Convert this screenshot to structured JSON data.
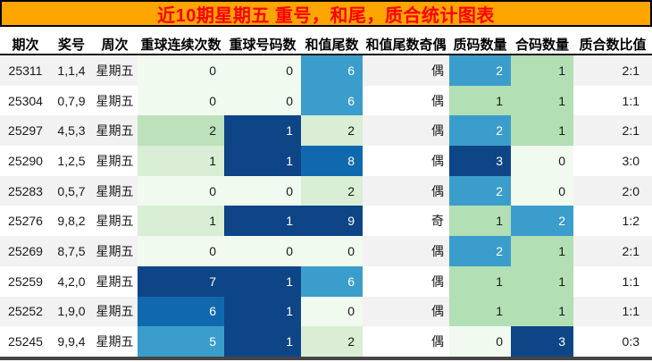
{
  "banner": {
    "title": "近10期星期五 重号，和尾，质合统计图表",
    "bg_color": "#FFA500",
    "text_color": "#FF0000"
  },
  "table": {
    "columns": [
      {
        "key": "period",
        "label": "期次"
      },
      {
        "key": "win-numbers",
        "label": "奖号"
      },
      {
        "key": "weekday",
        "label": "周次"
      },
      {
        "key": "repeat-streak",
        "label": "重球连续次数"
      },
      {
        "key": "repeat-number-count",
        "label": "重球号码数"
      },
      {
        "key": "sum-tail",
        "label": "和值尾数"
      },
      {
        "key": "sum-tail-parity",
        "label": "和值尾数奇偶"
      },
      {
        "key": "prime-count",
        "label": "质码数量"
      },
      {
        "key": "composite-count",
        "label": "合码数量"
      },
      {
        "key": "prime-composite-ratio",
        "label": "质合数比值"
      }
    ],
    "palette": {
      "c0": "#F1FAEE",
      "c1": "#D9EED5",
      "c2": "#BDE2BB",
      "c3": "#B2DFB4",
      "c4": "#3B9DCB",
      "c5": "#1069AF",
      "c6": "#0D4586"
    },
    "white_text_colors": [
      "c4",
      "c5",
      "c6"
    ],
    "stripe_color": "#F2F2F2",
    "rows": [
      {
        "cells": [
          "25311",
          "1,1,4",
          "星期五",
          "0",
          "0",
          "6",
          "偶",
          "2",
          "1",
          "2:1"
        ],
        "heat": [
          "",
          "",
          "",
          "c0",
          "c0",
          "c4",
          "",
          "c4",
          "c3",
          ""
        ]
      },
      {
        "cells": [
          "25304",
          "0,7,9",
          "星期五",
          "0",
          "0",
          "6",
          "偶",
          "1",
          "1",
          "1:1"
        ],
        "heat": [
          "",
          "",
          "",
          "c0",
          "c0",
          "c4",
          "",
          "c3",
          "c3",
          ""
        ]
      },
      {
        "cells": [
          "25297",
          "4,5,3",
          "星期五",
          "2",
          "1",
          "2",
          "偶",
          "2",
          "1",
          "2:1"
        ],
        "heat": [
          "",
          "",
          "",
          "c2",
          "c6",
          "c1",
          "",
          "c4",
          "c3",
          ""
        ]
      },
      {
        "cells": [
          "25290",
          "1,2,5",
          "星期五",
          "1",
          "1",
          "8",
          "偶",
          "3",
          "0",
          "3:0"
        ],
        "heat": [
          "",
          "",
          "",
          "c1",
          "c6",
          "c5",
          "",
          "c6",
          "c0",
          ""
        ]
      },
      {
        "cells": [
          "25283",
          "0,5,7",
          "星期五",
          "0",
          "0",
          "2",
          "偶",
          "2",
          "0",
          "2:0"
        ],
        "heat": [
          "",
          "",
          "",
          "c0",
          "c0",
          "c1",
          "",
          "c4",
          "c0",
          ""
        ]
      },
      {
        "cells": [
          "25276",
          "9,8,2",
          "星期五",
          "1",
          "1",
          "9",
          "奇",
          "1",
          "2",
          "1:2"
        ],
        "heat": [
          "",
          "",
          "",
          "c1",
          "c6",
          "c6",
          "",
          "c3",
          "c4",
          ""
        ]
      },
      {
        "cells": [
          "25269",
          "8,7,5",
          "星期五",
          "0",
          "0",
          "0",
          "偶",
          "2",
          "1",
          "2:1"
        ],
        "heat": [
          "",
          "",
          "",
          "c0",
          "c0",
          "c0",
          "",
          "c4",
          "c3",
          ""
        ]
      },
      {
        "cells": [
          "25259",
          "4,2,0",
          "星期五",
          "7",
          "1",
          "6",
          "偶",
          "1",
          "1",
          "1:1"
        ],
        "heat": [
          "",
          "",
          "",
          "c6",
          "c6",
          "c4",
          "",
          "c3",
          "c3",
          ""
        ]
      },
      {
        "cells": [
          "25252",
          "1,9,0",
          "星期五",
          "6",
          "1",
          "0",
          "偶",
          "1",
          "1",
          "1:1"
        ],
        "heat": [
          "",
          "",
          "",
          "c5",
          "c6",
          "c0",
          "",
          "c3",
          "c3",
          ""
        ]
      },
      {
        "cells": [
          "25245",
          "9,9,4",
          "星期五",
          "5",
          "1",
          "2",
          "偶",
          "0",
          "3",
          "0:3"
        ],
        "heat": [
          "",
          "",
          "",
          "c4",
          "c6",
          "c1",
          "",
          "c0",
          "c6",
          ""
        ]
      }
    ]
  },
  "chart_data": {
    "type": "table",
    "title": "近10期星期五 重号，和尾，质合统计图表",
    "columns": [
      "期次",
      "奖号",
      "周次",
      "重球连续次数",
      "重球号码数",
      "和值尾数",
      "和值尾数奇偶",
      "质码数量",
      "合码数量",
      "质合数比值"
    ],
    "rows": [
      [
        "25311",
        "1,1,4",
        "星期五",
        0,
        0,
        6,
        "偶",
        2,
        1,
        "2:1"
      ],
      [
        "25304",
        "0,7,9",
        "星期五",
        0,
        0,
        6,
        "偶",
        1,
        1,
        "1:1"
      ],
      [
        "25297",
        "4,5,3",
        "星期五",
        2,
        1,
        2,
        "偶",
        2,
        1,
        "2:1"
      ],
      [
        "25290",
        "1,2,5",
        "星期五",
        1,
        1,
        8,
        "偶",
        3,
        0,
        "3:0"
      ],
      [
        "25283",
        "0,5,7",
        "星期五",
        0,
        0,
        2,
        "偶",
        2,
        0,
        "2:0"
      ],
      [
        "25276",
        "9,8,2",
        "星期五",
        1,
        1,
        9,
        "奇",
        1,
        2,
        "1:2"
      ],
      [
        "25269",
        "8,7,5",
        "星期五",
        0,
        0,
        0,
        "偶",
        2,
        1,
        "2:1"
      ],
      [
        "25259",
        "4,2,0",
        "星期五",
        7,
        1,
        6,
        "偶",
        1,
        1,
        "1:1"
      ],
      [
        "25252",
        "1,9,0",
        "星期五",
        6,
        1,
        0,
        "偶",
        1,
        1,
        "1:1"
      ],
      [
        "25245",
        "9,9,4",
        "星期五",
        5,
        1,
        2,
        "偶",
        0,
        3,
        "0:3"
      ]
    ],
    "legend": "heatmap cell shading: light green = low value, green = mid, blue = high, navy = highest",
    "layout": "title banner on top (orange bg, red text), bold header row with black underline, alternating row stripes"
  }
}
